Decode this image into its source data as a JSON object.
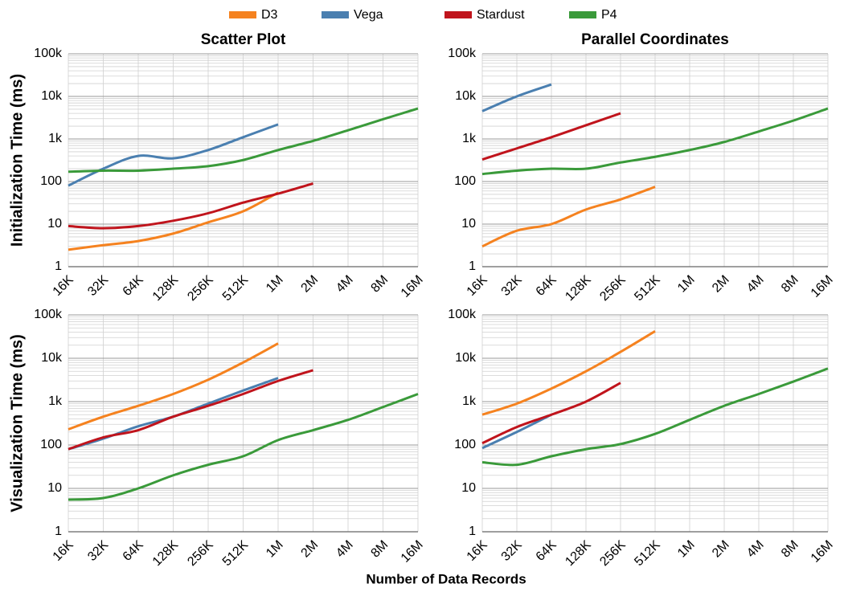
{
  "xlabel": "Number of Data Records",
  "chart_data": [
    {
      "type": "line",
      "title": "Scatter Plot",
      "ylabel": "Initialization Time (ms)",
      "log_scale": true,
      "grid": true,
      "categories": [
        "16K",
        "32K",
        "64K",
        "128K",
        "256K",
        "512K",
        "1M",
        "2M",
        "4M",
        "8M",
        "16M"
      ],
      "ylim": [
        1,
        100000
      ],
      "yticks": [
        1,
        10,
        100,
        {
          "value": 1000,
          "label": "1k"
        },
        {
          "value": 10000,
          "label": "10k"
        },
        {
          "value": 100000,
          "label": "100k"
        }
      ],
      "series": [
        {
          "name": "D3",
          "color": "#f5821f",
          "values": [
            2.5,
            3.2,
            4,
            6,
            11,
            20,
            55,
            null,
            null,
            null,
            null
          ]
        },
        {
          "name": "Vega",
          "color": "#4a7fb0",
          "values": [
            80,
            200,
            400,
            350,
            550,
            1100,
            2200,
            null,
            null,
            null,
            null
          ]
        },
        {
          "name": "Stardust",
          "color": "#c0141c",
          "values": [
            9,
            8,
            9,
            12,
            18,
            32,
            52,
            90,
            null,
            null,
            null
          ]
        },
        {
          "name": "P4",
          "color": "#3a9a3a",
          "values": [
            170,
            180,
            180,
            200,
            230,
            320,
            550,
            900,
            1600,
            2900,
            5200
          ]
        }
      ]
    },
    {
      "type": "line",
      "title": "Parallel Coordinates",
      "log_scale": true,
      "grid": true,
      "categories": [
        "16K",
        "32K",
        "64K",
        "128K",
        "256K",
        "512K",
        "1M",
        "2M",
        "4M",
        "8M",
        "16M"
      ],
      "ylim": [
        1,
        100000
      ],
      "yticks": [
        1,
        10,
        100,
        {
          "value": 1000,
          "label": "1k"
        },
        {
          "value": 10000,
          "label": "10k"
        },
        {
          "value": 100000,
          "label": "100k"
        }
      ],
      "series": [
        {
          "name": "D3",
          "color": "#f5821f",
          "values": [
            3,
            7,
            10,
            22,
            38,
            75,
            null,
            null,
            null,
            null,
            null
          ]
        },
        {
          "name": "Vega",
          "color": "#4a7fb0",
          "values": [
            4500,
            10000,
            19000,
            null,
            null,
            null,
            null,
            null,
            null,
            null,
            null
          ]
        },
        {
          "name": "Stardust",
          "color": "#c0141c",
          "values": [
            330,
            600,
            1100,
            2100,
            4000,
            null,
            null,
            null,
            null,
            null,
            null
          ]
        },
        {
          "name": "P4",
          "color": "#3a9a3a",
          "values": [
            150,
            180,
            200,
            200,
            280,
            380,
            550,
            850,
            1500,
            2700,
            5200
          ]
        }
      ]
    },
    {
      "type": "line",
      "ylabel": "Visualization Time (ms)",
      "log_scale": true,
      "grid": true,
      "categories": [
        "16K",
        "32K",
        "64K",
        "128K",
        "256K",
        "512K",
        "1M",
        "2M",
        "4M",
        "8M",
        "16M"
      ],
      "ylim": [
        1,
        100000
      ],
      "yticks": [
        1,
        10,
        100,
        {
          "value": 1000,
          "label": "1k"
        },
        {
          "value": 10000,
          "label": "10k"
        },
        {
          "value": 100000,
          "label": "100k"
        }
      ],
      "series": [
        {
          "name": "D3",
          "color": "#f5821f",
          "values": [
            230,
            450,
            800,
            1500,
            3200,
            8000,
            22000,
            null,
            null,
            null,
            null
          ]
        },
        {
          "name": "Vega",
          "color": "#4a7fb0",
          "values": [
            80,
            140,
            270,
            450,
            900,
            1800,
            3500,
            null,
            null,
            null,
            null
          ]
        },
        {
          "name": "Stardust",
          "color": "#c0141c",
          "values": [
            80,
            150,
            220,
            450,
            800,
            1500,
            3000,
            5300,
            null,
            null,
            null
          ]
        },
        {
          "name": "P4",
          "color": "#3a9a3a",
          "values": [
            5.5,
            6,
            10,
            20,
            35,
            55,
            130,
            220,
            380,
            750,
            1500
          ]
        }
      ]
    },
    {
      "type": "line",
      "log_scale": true,
      "grid": true,
      "categories": [
        "16K",
        "32K",
        "64K",
        "128K",
        "256K",
        "512K",
        "1M",
        "2M",
        "4M",
        "8M",
        "16M"
      ],
      "ylim": [
        1,
        100000
      ],
      "yticks": [
        1,
        10,
        100,
        {
          "value": 1000,
          "label": "1k"
        },
        {
          "value": 10000,
          "label": "10k"
        },
        {
          "value": 100000,
          "label": "100k"
        }
      ],
      "series": [
        {
          "name": "D3",
          "color": "#f5821f",
          "values": [
            500,
            900,
            2000,
            5000,
            14000,
            42000,
            null,
            null,
            null,
            null,
            null
          ]
        },
        {
          "name": "Vega",
          "color": "#4a7fb0",
          "values": [
            85,
            200,
            500,
            null,
            null,
            null,
            null,
            null,
            null,
            null,
            null
          ]
        },
        {
          "name": "Stardust",
          "color": "#c0141c",
          "values": [
            110,
            260,
            500,
            1000,
            2700,
            null,
            null,
            null,
            null,
            null,
            null
          ]
        },
        {
          "name": "P4",
          "color": "#3a9a3a",
          "values": [
            40,
            35,
            55,
            80,
            105,
            180,
            380,
            800,
            1500,
            2900,
            5800
          ]
        }
      ]
    }
  ]
}
